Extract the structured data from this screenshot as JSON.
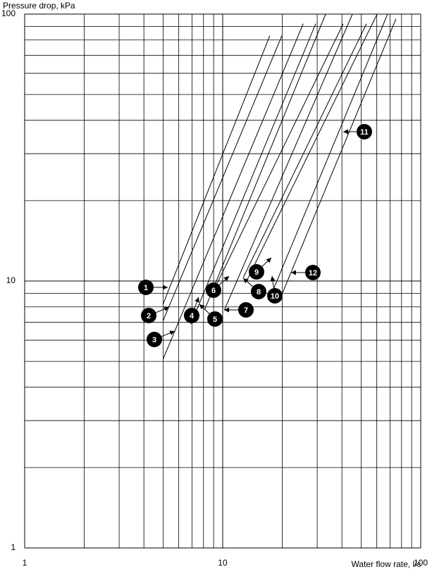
{
  "chart_data": {
    "type": "line",
    "y_label": "Pressure drop, kPa",
    "x_label": "Water flow rate, l/s",
    "log_x": true,
    "log_y": true,
    "grid": true,
    "minor_grid": true,
    "color": "#000000",
    "xlim": [
      1,
      100
    ],
    "ylim": [
      1,
      100
    ],
    "xticks": [
      1,
      10,
      100
    ],
    "yticks": [
      1,
      10,
      100
    ],
    "series": [
      {
        "x": [
          5,
          17.3
        ],
        "values": [
          8.2,
          83
        ]
      },
      {
        "x": [
          5,
          19.9
        ],
        "values": [
          7.1,
          83
        ]
      },
      {
        "x": [
          5,
          25.5
        ],
        "values": [
          5.1,
          92
        ]
      },
      {
        "x": [
          6.9,
          29.5
        ],
        "values": [
          6.9,
          92
        ]
      },
      {
        "x": [
          8.1,
          33.1
        ],
        "values": [
          7.8,
          100
        ]
      },
      {
        "x": [
          8.8,
          40.6
        ],
        "values": [
          8.9,
          92
        ]
      },
      {
        "x": [
          10.2,
          45.2
        ],
        "values": [
          7.8,
          100
        ]
      },
      {
        "x": [
          12.7,
          53.2
        ],
        "values": [
          10.3,
          92
        ]
      },
      {
        "x": [
          13.2,
          60.2
        ],
        "values": [
          10,
          100
        ]
      },
      {
        "x": [
          17.6,
          68
        ],
        "values": [
          8.9,
          100
        ]
      },
      {
        "x": [
          19.9,
          75
        ],
        "values": [
          8.9,
          96
        ]
      }
    ],
    "annotations": [
      "1",
      "2",
      "3",
      "4",
      "5",
      "6",
      "7",
      "8",
      "9",
      "10",
      "11",
      "12"
    ]
  }
}
